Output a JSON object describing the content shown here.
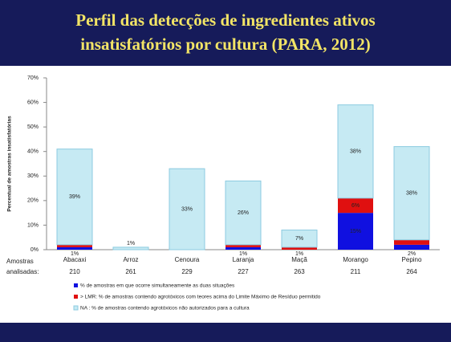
{
  "chart_data": {
    "type": "stacked_bar",
    "title": [
      "Perfil das detecções de ingredientes ativos",
      "insatisfatórios por cultura (PARA, 2012)"
    ],
    "y_label": "Percentual de amostras insatisfatórias",
    "categories": [
      "Abacaxi",
      "Arroz",
      "Cenoura",
      "Laranja",
      "Maçã",
      "Morango",
      "Pepino"
    ],
    "samples_label": [
      "Amostras",
      "analisadas:"
    ],
    "samples": [
      210,
      261,
      229,
      227,
      263,
      211,
      264
    ],
    "series": [
      {
        "name": "% de amostras em que ocorre simultaneamente as duas situações",
        "color": "#1010e0",
        "values": [
          1,
          0,
          0,
          1,
          0,
          15,
          2
        ],
        "value_labels": [
          "1%",
          null,
          null,
          "1%",
          null,
          "15%",
          "2%"
        ]
      },
      {
        "name": "> LMR: % de amostras contendo agrotóxicos com teores acima do Limite Máximo de Resíduo permitido",
        "color": "#e01010",
        "values": [
          1,
          0,
          0,
          1,
          1,
          6,
          2
        ],
        "value_labels": [
          "1%",
          null,
          null,
          "1%",
          "1%",
          "6%",
          "2%"
        ]
      },
      {
        "name": "NA : % de amostras contendo agrotóxicos não autorizados para a cultura",
        "color": "#c6eaf3",
        "values": [
          39,
          1,
          33,
          26,
          7,
          38,
          38
        ],
        "value_labels": [
          "39%",
          "1%",
          "33%",
          "26%",
          "7%",
          "38%",
          "38%"
        ]
      }
    ],
    "ylim": [
      0,
      70
    ],
    "yticks": [
      {
        "value": 0,
        "label": "0%"
      },
      {
        "value": 10,
        "label": "10%"
      },
      {
        "value": 20,
        "label": "20%"
      },
      {
        "value": 30,
        "label": "30%"
      },
      {
        "value": 40,
        "label": "40%"
      },
      {
        "value": 50,
        "label": "50%"
      },
      {
        "value": 60,
        "label": "60%"
      },
      {
        "value": 70,
        "label": "70%"
      }
    ]
  }
}
